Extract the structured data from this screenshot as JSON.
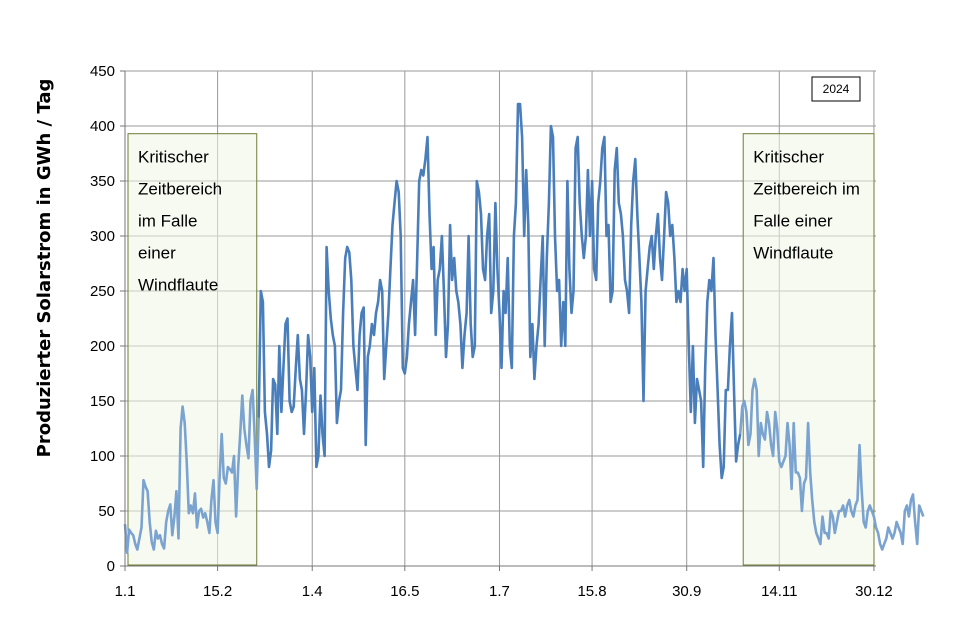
{
  "chart_data": {
    "type": "line",
    "ylabel": "Produzierter Solarstrom  in GWh / Tag",
    "ylim": [
      0,
      450
    ],
    "yticks": [
      0,
      50,
      100,
      150,
      200,
      250,
      300,
      350,
      400,
      450
    ],
    "xticks": [
      {
        "day": 1,
        "label": "1.1"
      },
      {
        "day": 46,
        "label": "15.2"
      },
      {
        "day": 92,
        "label": "1.4"
      },
      {
        "day": 137,
        "label": "16.5"
      },
      {
        "day": 183,
        "label": "1.7"
      },
      {
        "day": 228,
        "label": "15.8"
      },
      {
        "day": 274,
        "label": "30.9"
      },
      {
        "day": 319,
        "label": "14.11"
      },
      {
        "day": 365,
        "label": "30.12"
      }
    ],
    "xlim": [
      1,
      366
    ],
    "grid": true,
    "legend_box": "2024",
    "regions": [
      {
        "from_day": 1,
        "to_day": 66,
        "text_lines": [
          "Kritischer",
          "Zeitbereich",
          "im Falle",
          "einer",
          "Windflaute"
        ]
      },
      {
        "from_day": 300,
        "to_day": 366,
        "text_lines": [
          "Kritischer",
          "Zeitbereich im",
          "Falle einer",
          "Windflaute"
        ]
      }
    ],
    "series": [
      {
        "color": "#4a7ebb",
        "highlight_color": "#7ba3d0",
        "values": [
          38,
          12,
          33,
          30,
          28,
          20,
          15,
          25,
          35,
          78,
          72,
          68,
          40,
          22,
          15,
          32,
          25,
          28,
          20,
          16,
          40,
          50,
          56,
          28,
          45,
          68,
          25,
          125,
          145,
          130,
          95,
          48,
          55,
          48,
          66,
          35,
          50,
          52,
          44,
          48,
          40,
          30,
          60,
          78,
          40,
          30,
          80,
          120,
          80,
          75,
          90,
          88,
          85,
          100,
          45,
          90,
          120,
          155,
          125,
          110,
          98,
          150,
          160,
          120,
          70,
          135,
          250,
          240,
          140,
          120,
          90,
          105,
          170,
          165,
          120,
          200,
          140,
          180,
          220,
          225,
          150,
          140,
          145,
          180,
          210,
          170,
          160,
          120,
          160,
          210,
          190,
          140,
          180,
          90,
          100,
          155,
          120,
          100,
          290,
          250,
          225,
          210,
          200,
          130,
          150,
          160,
          230,
          280,
          290,
          285,
          260,
          200,
          180,
          160,
          210,
          230,
          235,
          110,
          190,
          200,
          220,
          210,
          230,
          240,
          260,
          250,
          170,
          200,
          230,
          270,
          310,
          330,
          350,
          340,
          300,
          180,
          175,
          190,
          220,
          240,
          260,
          210,
          280,
          350,
          360,
          355,
          370,
          390,
          320,
          270,
          290,
          210,
          260,
          270,
          300,
          250,
          190,
          220,
          310,
          260,
          280,
          250,
          240,
          220,
          180,
          210,
          230,
          300,
          220,
          190,
          200,
          350,
          340,
          320,
          270,
          260,
          300,
          320,
          230,
          250,
          330,
          270,
          230,
          180,
          250,
          230,
          280,
          200,
          180,
          300,
          330,
          420,
          420,
          390,
          300,
          360,
          310,
          190,
          220,
          170,
          200,
          220,
          260,
          300,
          200,
          280,
          330,
          400,
          390,
          300,
          250,
          260,
          200,
          240,
          200,
          350,
          270,
          230,
          250,
          380,
          390,
          330,
          300,
          280,
          300,
          360,
          300,
          350,
          270,
          260,
          330,
          350,
          380,
          390,
          300,
          310,
          240,
          250,
          360,
          380,
          330,
          320,
          300,
          260,
          250,
          230,
          310,
          350,
          370,
          320,
          280,
          240,
          150,
          250,
          270,
          290,
          300,
          270,
          300,
          320,
          280,
          260,
          300,
          340,
          330,
          300,
          310,
          280,
          240,
          250,
          240,
          270,
          250,
          270,
          200,
          140,
          200,
          130,
          170,
          160,
          150,
          90,
          180,
          240,
          260,
          250,
          280,
          210,
          160,
          110,
          80,
          90,
          160,
          160,
          200,
          230,
          160,
          95,
          110,
          120,
          145,
          150,
          140,
          110,
          120,
          160,
          170,
          160,
          100,
          130,
          120,
          115,
          140,
          130,
          110,
          100,
          140,
          125,
          95,
          90,
          95,
          100,
          130,
          110,
          70,
          130,
          85,
          85,
          80,
          50,
          75,
          80,
          130,
          85,
          60,
          40,
          30,
          25,
          20,
          45,
          30,
          30,
          25,
          50,
          45,
          30,
          40,
          50,
          50,
          55,
          45,
          55,
          60,
          50,
          45,
          55,
          60,
          110,
          70,
          40,
          35,
          50,
          55,
          50,
          45,
          35,
          30,
          20,
          15,
          20,
          25,
          35,
          30,
          25,
          30,
          40,
          35,
          30,
          20,
          50,
          55,
          45,
          60,
          65,
          40,
          20,
          55,
          50,
          45
        ]
      }
    ]
  }
}
